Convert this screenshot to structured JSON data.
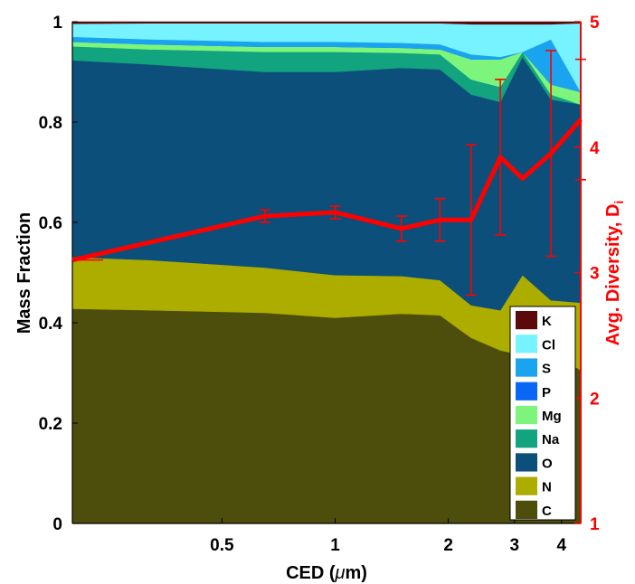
{
  "chart_data": {
    "type": "area",
    "xlabel": "CED (μm)",
    "xlabel_prefix": "CED (",
    "xlabel_mu": "μ",
    "xlabel_suffix": "m)",
    "ylabel": "Mass Fraction",
    "y2label": "Avg. Diversity, D",
    "y2label_sub": "i",
    "xscale": "log",
    "xlim": [
      0.2,
      4.5
    ],
    "ylim": [
      0,
      1
    ],
    "y2lim": [
      1,
      5
    ],
    "xticks": [
      0.5,
      1,
      2,
      3,
      4
    ],
    "xticklabels": [
      "0.5",
      "1",
      "2",
      "3",
      "4"
    ],
    "yticks": [
      0,
      0.2,
      0.4,
      0.6,
      0.8,
      1
    ],
    "yticklabels": [
      "0",
      "0.2",
      "0.4",
      "0.6",
      "0.8",
      "1"
    ],
    "y2ticks": [
      1,
      2,
      3,
      4,
      5
    ],
    "y2ticklabels": [
      "1",
      "2",
      "3",
      "4",
      "5"
    ],
    "legend_position": "bottom-right",
    "x": [
      0.2,
      0.32,
      0.65,
      1.0,
      1.5,
      1.9,
      2.3,
      2.75,
      3.15,
      3.75,
      4.5
    ],
    "series": [
      {
        "name": "C",
        "color": "#4d4d0c",
        "values": [
          0.428,
          0.425,
          0.42,
          0.41,
          0.418,
          0.415,
          0.37,
          0.345,
          0.335,
          0.345,
          0.305
        ]
      },
      {
        "name": "N",
        "color": "#adad00",
        "values": [
          0.103,
          0.1,
          0.09,
          0.085,
          0.075,
          0.07,
          0.065,
          0.08,
          0.16,
          0.1,
          0.135
        ]
      },
      {
        "name": "O",
        "color": "#0b4f7a",
        "values": [
          0.392,
          0.39,
          0.39,
          0.405,
          0.415,
          0.42,
          0.42,
          0.415,
          0.435,
          0.4,
          0.395
        ]
      },
      {
        "name": "Na",
        "color": "#12a37f",
        "values": [
          0.028,
          0.03,
          0.04,
          0.04,
          0.03,
          0.03,
          0.03,
          0.03,
          0.01,
          0.01,
          0.0
        ]
      },
      {
        "name": "Mg",
        "color": "#7df57d",
        "values": [
          0.009,
          0.01,
          0.01,
          0.01,
          0.01,
          0.01,
          0.04,
          0.055,
          0.0,
          0.02,
          0.025
        ]
      },
      {
        "name": "P",
        "color": "#0a66f5",
        "values": [
          0.0,
          0.0,
          0.0,
          0.0,
          0.0,
          0.0,
          0.0,
          0.0,
          0.0,
          0.0,
          0.0
        ]
      },
      {
        "name": "S",
        "color": "#1aa3ef",
        "values": [
          0.01,
          0.01,
          0.01,
          0.01,
          0.01,
          0.01,
          0.01,
          0.005,
          0.0,
          0.09,
          0.0
        ]
      },
      {
        "name": "Cl",
        "color": "#77f2ff",
        "values": [
          0.026,
          0.032,
          0.037,
          0.037,
          0.039,
          0.042,
          0.06,
          0.065,
          0.055,
          0.03,
          0.137
        ]
      },
      {
        "name": "K",
        "color": "#5a0a0a",
        "values": [
          0.004,
          0.003,
          0.003,
          0.003,
          0.003,
          0.003,
          0.005,
          0.005,
          0.005,
          0.005,
          0.003
        ]
      }
    ],
    "diversity": {
      "name": "Avg. Diversity, Di",
      "color": "#ff0000",
      "x": [
        0.2,
        0.65,
        1.0,
        1.5,
        1.9,
        2.3,
        2.75,
        3.15,
        3.75,
        4.5
      ],
      "values": [
        3.1,
        3.45,
        3.48,
        3.35,
        3.42,
        3.42,
        3.92,
        3.75,
        3.95,
        4.22
      ],
      "error": [
        0.0,
        0.05,
        0.05,
        0.1,
        0.17,
        0.6,
        0.62,
        0.0,
        0.82,
        0.48
      ]
    }
  }
}
